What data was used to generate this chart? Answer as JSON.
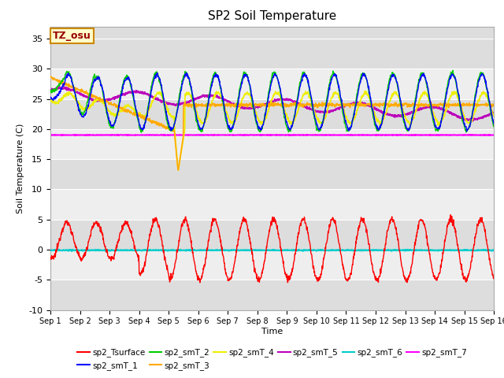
{
  "title": "SP2 Soil Temperature",
  "xlabel": "Time",
  "ylabel": "Soil Temperature (C)",
  "ylim": [
    -10,
    37
  ],
  "xlim": [
    0,
    15
  ],
  "xtick_labels": [
    "Sep 1",
    "Sep 2",
    "Sep 3",
    "Sep 4",
    "Sep 5",
    "Sep 6",
    "Sep 7",
    "Sep 8",
    "Sep 9",
    "Sep 10",
    "Sep 11",
    "Sep 12",
    "Sep 13",
    "Sep 14",
    "Sep 15",
    "Sep 16"
  ],
  "ytick_values": [
    -10,
    -5,
    0,
    5,
    10,
    15,
    20,
    25,
    30,
    35
  ],
  "tz_label": "TZ_osu",
  "colors": {
    "sp2_Tsurface": "#ff0000",
    "sp2_smT_1": "#0000ff",
    "sp2_smT_2": "#00cc00",
    "sp2_smT_3": "#ffaa00",
    "sp2_smT_4": "#eeee00",
    "sp2_smT_5": "#bb00bb",
    "sp2_smT_6": "#00cccc",
    "sp2_smT_7": "#ff00ff"
  },
  "bg_color": "#dddddd",
  "bg_color2": "#eeeeee",
  "white_color": "#ffffff"
}
